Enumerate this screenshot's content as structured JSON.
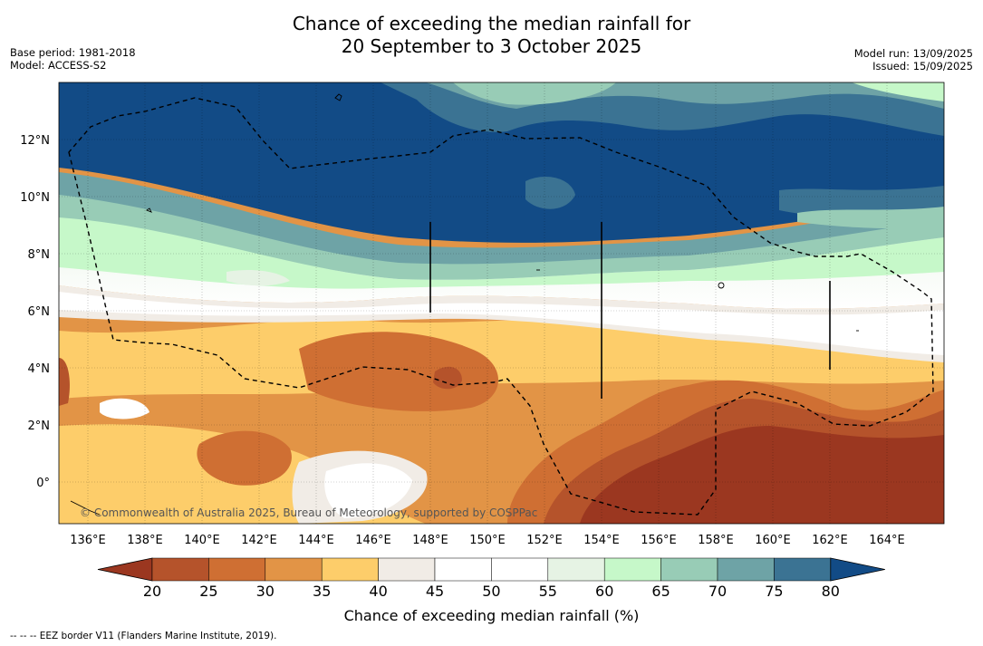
{
  "title": {
    "line1": "Chance of exceeding the median rainfall for",
    "line2": "20 September to 3 October 2025"
  },
  "meta_left": {
    "base_period": "Base period: 1981-2018",
    "model": "Model: ACCESS-S2"
  },
  "meta_right": {
    "model_run": "Model run: 13/09/2025",
    "issued": "Issued: 15/09/2025"
  },
  "map": {
    "lon_labels": [
      "136°E",
      "138°E",
      "140°E",
      "142°E",
      "144°E",
      "146°E",
      "148°E",
      "150°E",
      "152°E",
      "154°E",
      "156°E",
      "158°E",
      "160°E",
      "162°E",
      "164°E"
    ],
    "lat_labels": [
      "12°N",
      "10°N",
      "8°N",
      "6°N",
      "4°N",
      "2°N",
      "0°"
    ],
    "copyright": "© Commonwealth of Australia 2025, Bureau of Meteorology, supported by COSPPac"
  },
  "colorbar": {
    "ticks": [
      "20",
      "25",
      "30",
      "35",
      "40",
      "45",
      "50",
      "55",
      "60",
      "65",
      "70",
      "75",
      "80"
    ],
    "colors": [
      "#9b3720",
      "#b5532b",
      "#cf6f33",
      "#e29446",
      "#fdcd6a",
      "#f1ece6",
      "#ffffff",
      "#ffffff",
      "#e6f3e4",
      "#c6f8c9",
      "#98ccb6",
      "#6ea3a6",
      "#3b7393",
      "#124b86"
    ],
    "label": "Chance of exceeding median rainfall (%)"
  },
  "footnote": "--  --  -- EEZ border V11 (Flanders Marine Institute, 2019)."
}
